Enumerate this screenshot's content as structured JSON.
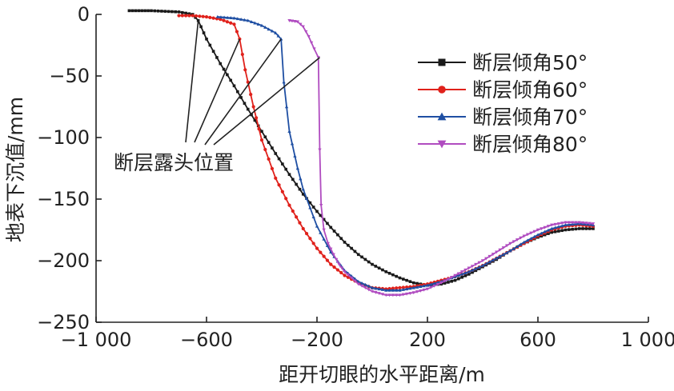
{
  "chart_data": {
    "type": "line",
    "title": "",
    "xlabel": "距开切眼的水平距离/m",
    "ylabel": "地表下沉值/mm",
    "xlim": [
      -1000,
      1000
    ],
    "ylim": [
      -250,
      0
    ],
    "xticks": [
      -1000,
      -600,
      -200,
      200,
      600,
      1000
    ],
    "xtick_labels": [
      "−1 000",
      "−600",
      "−200",
      "200",
      "600",
      "1 000"
    ],
    "yticks": [
      0,
      -50,
      -100,
      -150,
      -200,
      -250
    ],
    "ytick_labels": [
      "0",
      "−50",
      "−100",
      "−150",
      "−200",
      "−250"
    ],
    "grid": false,
    "legend_position": "right",
    "annotation": {
      "text": "断层露头位置",
      "points": [
        {
          "x": -630,
          "y": -5
        },
        {
          "x": -480,
          "y": -20
        },
        {
          "x": -330,
          "y": -20
        },
        {
          "x": -190,
          "y": -35
        }
      ]
    },
    "series": [
      {
        "name": "断层倾角50°",
        "color": "#1a1a1a",
        "marker": "square",
        "x": [
          -880,
          -800,
          -700,
          -650,
          -630,
          -600,
          -550,
          -500,
          -450,
          -400,
          -350,
          -300,
          -250,
          -200,
          -150,
          -100,
          -50,
          0,
          50,
          100,
          150,
          200,
          250,
          300,
          350,
          400,
          450,
          500,
          550,
          600,
          650,
          700,
          750,
          800
        ],
        "y": [
          3,
          3,
          2,
          0,
          -5,
          -20,
          -40,
          -58,
          -77,
          -95,
          -113,
          -130,
          -146,
          -160,
          -173,
          -185,
          -195,
          -203,
          -209,
          -214,
          -218,
          -220,
          -219,
          -216,
          -211,
          -205,
          -199,
          -192,
          -186,
          -181,
          -177,
          -175,
          -174,
          -174
        ]
      },
      {
        "name": "断层倾角60°",
        "color": "#e0211b",
        "marker": "circle",
        "x": [
          -700,
          -650,
          -600,
          -550,
          -500,
          -480,
          -460,
          -430,
          -400,
          -350,
          -300,
          -250,
          -200,
          -150,
          -100,
          -50,
          0,
          50,
          100,
          150,
          200,
          250,
          300,
          350,
          400,
          450,
          500,
          550,
          600,
          650,
          700,
          750,
          800
        ],
        "y": [
          -1,
          -1,
          -2,
          -4,
          -8,
          -20,
          -45,
          -75,
          -102,
          -133,
          -155,
          -174,
          -190,
          -203,
          -212,
          -218,
          -222,
          -223,
          -222,
          -221,
          -219,
          -216,
          -213,
          -209,
          -204,
          -198,
          -192,
          -186,
          -180,
          -175,
          -172,
          -171,
          -172
        ]
      },
      {
        "name": "断层倾角70°",
        "color": "#1f4fa3",
        "marker": "triangle-up",
        "x": [
          -560,
          -500,
          -450,
          -400,
          -350,
          -330,
          -320,
          -300,
          -270,
          -250,
          -200,
          -150,
          -100,
          -50,
          0,
          50,
          100,
          150,
          200,
          250,
          300,
          350,
          400,
          450,
          500,
          550,
          600,
          650,
          700,
          750,
          800
        ],
        "y": [
          -2,
          -3,
          -5,
          -9,
          -15,
          -20,
          -55,
          -95,
          -125,
          -142,
          -172,
          -193,
          -208,
          -217,
          -222,
          -224,
          -224,
          -222,
          -220,
          -217,
          -213,
          -209,
          -204,
          -198,
          -192,
          -185,
          -179,
          -174,
          -171,
          -170,
          -171
        ]
      },
      {
        "name": "断层倾角80°",
        "color": "#b04cc0",
        "marker": "triangle-down",
        "x": [
          -300,
          -270,
          -250,
          -230,
          -210,
          -195,
          -190,
          -185,
          -175,
          -160,
          -140,
          -120,
          -100,
          -50,
          0,
          50,
          100,
          150,
          200,
          250,
          300,
          350,
          400,
          450,
          500,
          550,
          600,
          650,
          700,
          750,
          800
        ],
        "y": [
          -5,
          -6,
          -10,
          -18,
          -28,
          -35,
          -110,
          -155,
          -175,
          -186,
          -195,
          -203,
          -209,
          -219,
          -225,
          -228,
          -228,
          -226,
          -223,
          -218,
          -212,
          -206,
          -200,
          -193,
          -186,
          -180,
          -175,
          -171,
          -169,
          -169,
          -170
        ]
      }
    ]
  }
}
